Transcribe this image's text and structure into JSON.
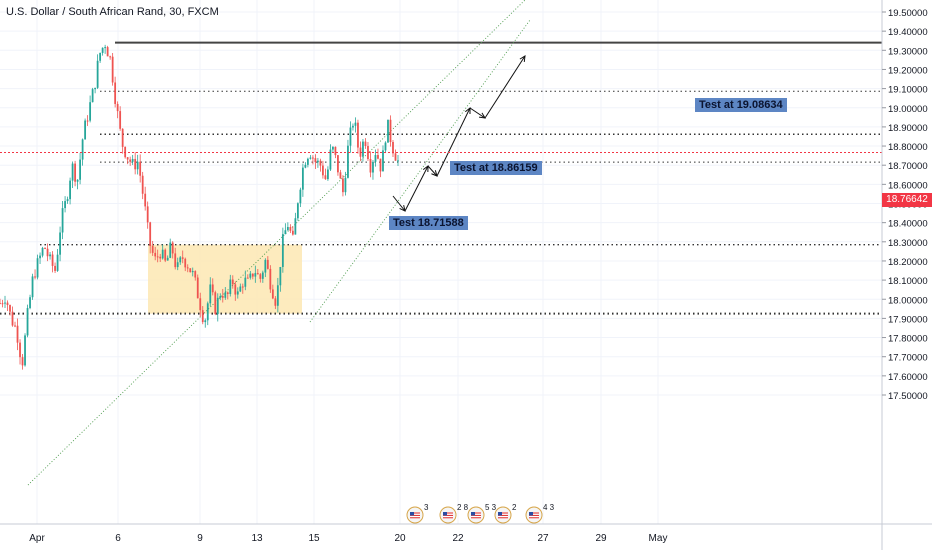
{
  "header": {
    "title": "U.S. Dollar / South African Rand, 30, FXCM"
  },
  "colors": {
    "up": "#26a69a",
    "down": "#ef5350",
    "price_line": "#f23645",
    "zone_fill": "#fde8b3",
    "axis_text": "#131722",
    "grid": "#f0f3fa",
    "annotation_bg": "#5d86c4",
    "level_line": "#333333",
    "trendline": "#4c9a4c"
  },
  "price_axis": {
    "labels": [
      "19.50000",
      "19.40000",
      "19.30000",
      "19.20000",
      "19.10000",
      "19.00000",
      "18.90000",
      "18.80000",
      "18.70000",
      "18.60000",
      "18.50000",
      "18.40000",
      "18.30000",
      "18.20000",
      "18.10000",
      "18.00000",
      "17.90000",
      "17.80000",
      "17.70000",
      "17.60000",
      "17.50000"
    ],
    "current_price": "18.76642"
  },
  "time_axis": {
    "labels": [
      "Apr",
      "6",
      "9",
      "13",
      "15",
      "20",
      "22",
      "27",
      "29",
      "May"
    ]
  },
  "annotations": [
    {
      "id": "test-18-71588",
      "text": "Test 18.71588"
    },
    {
      "id": "test-18-86159",
      "text": "Test at 18.86159"
    },
    {
      "id": "test-19-08634",
      "text": "Test at 19.08634"
    }
  ],
  "events": [
    {
      "icon": "us-flag-icon",
      "count": "3"
    },
    {
      "icon": "us-flag-icon",
      "count": "2 8"
    },
    {
      "icon": "us-flag-icon",
      "count": "5 3"
    },
    {
      "icon": "us-flag-icon",
      "count": "2"
    },
    {
      "icon": "us-flag-icon",
      "count": "4 3"
    }
  ],
  "chart_data": {
    "type": "candlestick",
    "title": "U.S. Dollar / South African Rand, 30, FXCM",
    "ylim": [
      17.5,
      19.5
    ],
    "levels": [
      19.34,
      19.08634,
      18.86159,
      18.71588,
      18.285,
      17.925
    ],
    "zone": {
      "price_top": 18.285,
      "price_bottom": 17.925
    },
    "path": [
      17.98,
      18.02,
      17.9,
      17.84,
      17.66,
      17.92,
      18.12,
      18.2,
      18.28,
      18.2,
      18.15,
      18.4,
      18.52,
      18.7,
      18.62,
      18.85,
      18.98,
      19.1,
      19.28,
      19.34,
      19.25,
      19.02,
      18.82,
      18.75,
      18.7,
      18.72,
      18.52,
      18.3,
      18.2,
      18.25,
      18.18,
      18.28,
      18.15,
      18.22,
      18.18,
      18.12,
      18.0,
      17.88,
      18.05,
      17.95,
      18.05,
      18.0,
      18.1,
      18.02,
      18.1,
      18.08,
      18.16,
      18.1,
      18.2,
      18.08,
      17.98,
      18.28,
      18.4,
      18.3,
      18.55,
      18.72,
      18.78,
      18.72,
      18.7,
      18.62,
      18.8,
      18.7,
      18.55,
      18.8,
      18.95,
      18.75,
      18.85,
      18.7,
      18.78,
      18.68,
      18.92,
      18.8,
      18.72
    ]
  }
}
